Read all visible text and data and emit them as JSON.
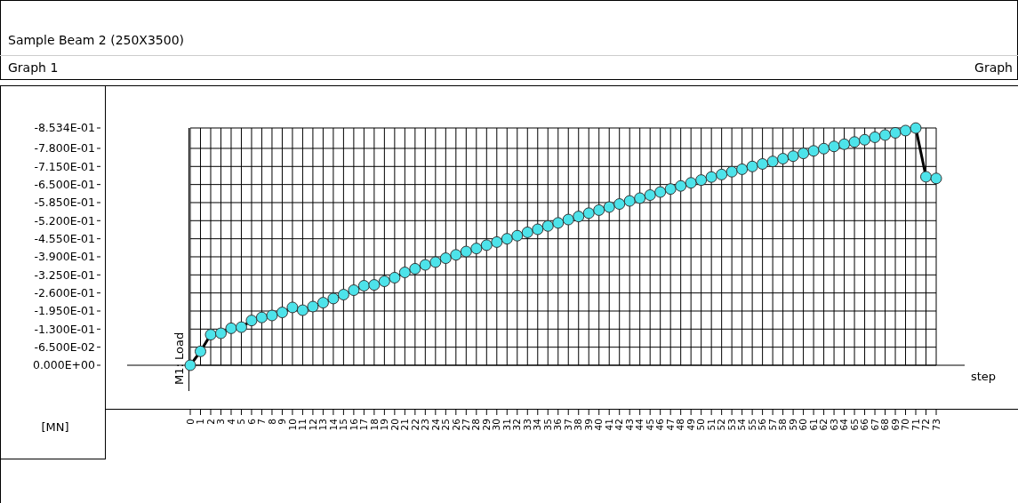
{
  "chart_data": {
    "type": "line",
    "title": "Sample Beam 2 (250X3500)",
    "subtitle": "Graph 1",
    "annotations": [
      "Graph"
    ],
    "xlabel": "step",
    "ylabel": "[MN]",
    "x": [
      0,
      1,
      2,
      3,
      4,
      5,
      6,
      7,
      8,
      9,
      10,
      11,
      12,
      13,
      14,
      15,
      16,
      17,
      18,
      19,
      20,
      21,
      22,
      23,
      24,
      25,
      26,
      27,
      28,
      29,
      30,
      31,
      32,
      33,
      34,
      35,
      36,
      37,
      38,
      39,
      40,
      41,
      42,
      43,
      44,
      45,
      46,
      47,
      48,
      49,
      50,
      51,
      52,
      53,
      54,
      55,
      56,
      57,
      58,
      59,
      60,
      61,
      62,
      63,
      64,
      65,
      66,
      67,
      68,
      69,
      70,
      71,
      72,
      73
    ],
    "series": [
      {
        "name": "M1: Load",
        "color": "#4de3ea",
        "values": [
          0,
          -0.05,
          -0.11,
          -0.115,
          -0.133,
          -0.137,
          -0.161,
          -0.172,
          -0.179,
          -0.19,
          -0.208,
          -0.198,
          -0.211,
          -0.225,
          -0.24,
          -0.254,
          -0.27,
          -0.286,
          -0.289,
          -0.302,
          -0.315,
          -0.334,
          -0.347,
          -0.361,
          -0.371,
          -0.385,
          -0.397,
          -0.409,
          -0.42,
          -0.432,
          -0.443,
          -0.455,
          -0.466,
          -0.478,
          -0.489,
          -0.501,
          -0.512,
          -0.524,
          -0.535,
          -0.547,
          -0.558,
          -0.569,
          -0.58,
          -0.591,
          -0.601,
          -0.612,
          -0.623,
          -0.634,
          -0.645,
          -0.656,
          -0.666,
          -0.677,
          -0.686,
          -0.696,
          -0.705,
          -0.715,
          -0.724,
          -0.733,
          -0.743,
          -0.752,
          -0.762,
          -0.771,
          -0.779,
          -0.787,
          -0.795,
          -0.803,
          -0.811,
          -0.82,
          -0.828,
          -0.836,
          -0.844,
          -0.853,
          -0.678,
          -0.672
        ]
      }
    ],
    "xlim": [
      0,
      73
    ],
    "xticks": [
      0,
      1,
      2,
      3,
      4,
      5,
      6,
      7,
      8,
      9,
      10,
      11,
      12,
      13,
      14,
      15,
      16,
      17,
      18,
      19,
      20,
      21,
      22,
      23,
      24,
      25,
      26,
      27,
      28,
      29,
      30,
      31,
      32,
      33,
      34,
      35,
      36,
      37,
      38,
      39,
      40,
      41,
      42,
      43,
      44,
      45,
      46,
      47,
      48,
      49,
      50,
      51,
      52,
      53,
      54,
      55,
      56,
      57,
      58,
      59,
      60,
      61,
      62,
      63,
      64,
      65,
      66,
      67,
      68,
      69,
      70,
      71,
      72,
      73
    ],
    "ylim": [
      0,
      -0.8534
    ],
    "yticks": [
      {
        "value": 0,
        "label": "0.000E+00"
      },
      {
        "value": -0.065,
        "label": "-6.500E-02"
      },
      {
        "value": -0.13,
        "label": "-1.300E-01"
      },
      {
        "value": -0.195,
        "label": "-1.950E-01"
      },
      {
        "value": -0.26,
        "label": "-2.600E-01"
      },
      {
        "value": -0.325,
        "label": "-3.250E-01"
      },
      {
        "value": -0.39,
        "label": "-3.900E-01"
      },
      {
        "value": -0.455,
        "label": "-4.550E-01"
      },
      {
        "value": -0.52,
        "label": "-5.200E-01"
      },
      {
        "value": -0.585,
        "label": "-5.850E-01"
      },
      {
        "value": -0.65,
        "label": "-6.500E-01"
      },
      {
        "value": -0.715,
        "label": "-7.150E-01"
      },
      {
        "value": -0.78,
        "label": "-7.800E-01"
      },
      {
        "value": -0.8534,
        "label": "-8.534E-01"
      }
    ],
    "grid": true,
    "marker": "circle"
  }
}
